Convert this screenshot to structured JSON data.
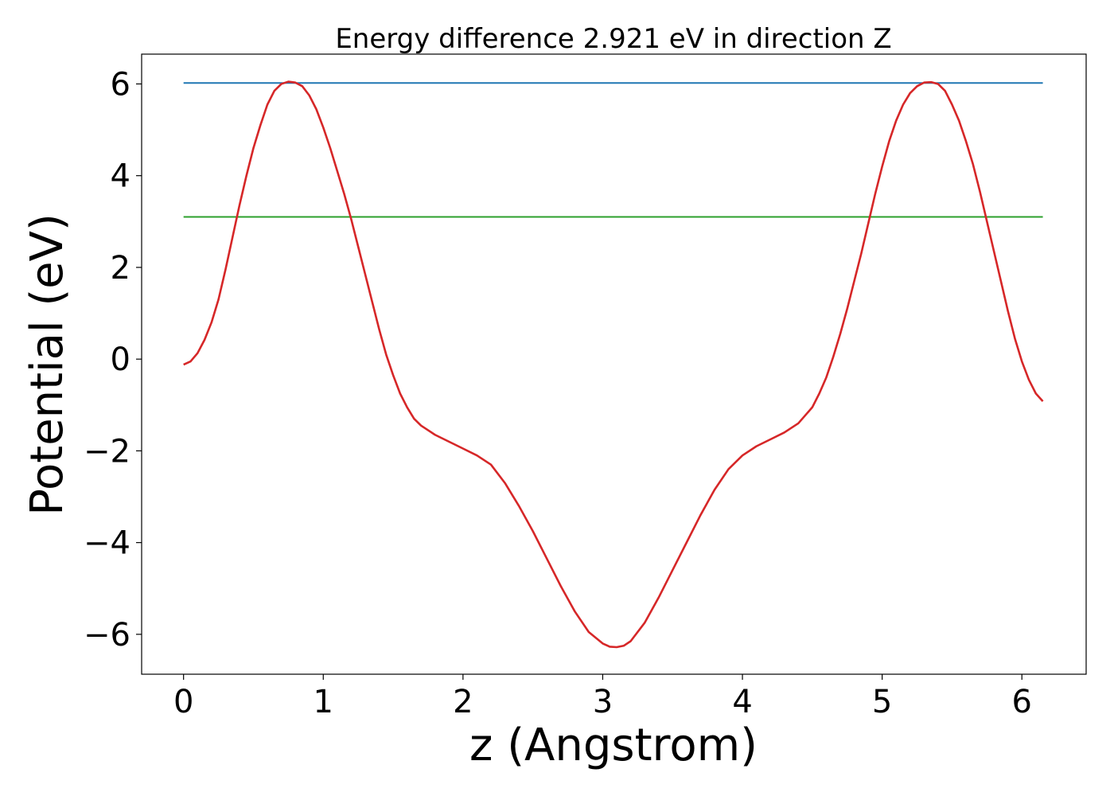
{
  "chart_data": {
    "type": "line",
    "title": "Energy difference 2.921 eV in direction Z",
    "xlabel": "z (Angstrom)",
    "ylabel": "Potential (eV)",
    "xlim": [
      -0.3,
      6.46
    ],
    "ylim": [
      -6.87,
      6.65
    ],
    "xticks": [
      {
        "value": 0,
        "label": "0"
      },
      {
        "value": 1,
        "label": "1"
      },
      {
        "value": 2,
        "label": "2"
      },
      {
        "value": 3,
        "label": "3"
      },
      {
        "value": 4,
        "label": "4"
      },
      {
        "value": 5,
        "label": "5"
      },
      {
        "value": 6,
        "label": "6"
      }
    ],
    "yticks": [
      {
        "value": -6,
        "label": "−6"
      },
      {
        "value": -4,
        "label": "−4"
      },
      {
        "value": -2,
        "label": "−2"
      },
      {
        "value": 0,
        "label": "0"
      },
      {
        "value": 2,
        "label": "2"
      },
      {
        "value": 4,
        "label": "4"
      },
      {
        "value": 6,
        "label": "6"
      }
    ],
    "grid": false,
    "legend": "none",
    "series": [
      {
        "color": "#1f77b4",
        "x": [
          0,
          6.15
        ],
        "y": [
          6.02,
          6.02
        ]
      },
      {
        "color": "#2ca02c",
        "x": [
          0,
          6.15
        ],
        "y": [
          3.1,
          3.1
        ]
      },
      {
        "color": "#d62728",
        "x": [
          0,
          0.05,
          0.1,
          0.15,
          0.2,
          0.25,
          0.3,
          0.35,
          0.4,
          0.45,
          0.5,
          0.55,
          0.6,
          0.65,
          0.7,
          0.75,
          0.8,
          0.85,
          0.9,
          0.95,
          1.0,
          1.05,
          1.1,
          1.15,
          1.2,
          1.25,
          1.3,
          1.35,
          1.4,
          1.45,
          1.5,
          1.55,
          1.6,
          1.65,
          1.7,
          1.75,
          1.8,
          1.9,
          2.0,
          2.1,
          2.2,
          2.3,
          2.4,
          2.5,
          2.6,
          2.7,
          2.8,
          2.9,
          3.0,
          3.05,
          3.1,
          3.15,
          3.2,
          3.3,
          3.4,
          3.5,
          3.6,
          3.7,
          3.8,
          3.9,
          4.0,
          4.1,
          4.2,
          4.3,
          4.4,
          4.5,
          4.55,
          4.6,
          4.65,
          4.7,
          4.75,
          4.8,
          4.85,
          4.9,
          4.95,
          5.0,
          5.05,
          5.1,
          5.15,
          5.2,
          5.25,
          5.3,
          5.35,
          5.4,
          5.45,
          5.5,
          5.55,
          5.6,
          5.65,
          5.7,
          5.75,
          5.8,
          5.85,
          5.9,
          5.95,
          6.0,
          6.05,
          6.1,
          6.15
        ],
        "y": [
          -0.12,
          -0.05,
          0.13,
          0.42,
          0.8,
          1.3,
          1.95,
          2.65,
          3.35,
          4.0,
          4.6,
          5.1,
          5.55,
          5.85,
          6.0,
          6.05,
          6.03,
          5.95,
          5.75,
          5.45,
          5.05,
          4.6,
          4.1,
          3.6,
          3.05,
          2.45,
          1.85,
          1.25,
          0.65,
          0.1,
          -0.35,
          -0.75,
          -1.05,
          -1.3,
          -1.45,
          -1.55,
          -1.65,
          -1.8,
          -1.95,
          -2.1,
          -2.3,
          -2.7,
          -3.2,
          -3.75,
          -4.35,
          -4.95,
          -5.5,
          -5.95,
          -6.2,
          -6.27,
          -6.28,
          -6.25,
          -6.15,
          -5.75,
          -5.2,
          -4.6,
          -4.0,
          -3.4,
          -2.85,
          -2.4,
          -2.1,
          -1.9,
          -1.75,
          -1.6,
          -1.4,
          -1.05,
          -0.75,
          -0.4,
          0.05,
          0.55,
          1.1,
          1.7,
          2.3,
          2.95,
          3.6,
          4.2,
          4.75,
          5.2,
          5.55,
          5.8,
          5.95,
          6.03,
          6.04,
          6.0,
          5.85,
          5.55,
          5.2,
          4.75,
          4.25,
          3.65,
          3.0,
          2.35,
          1.7,
          1.05,
          0.45,
          -0.05,
          -0.45,
          -0.75,
          -0.92
        ],
        "ignore_y_override": null
      }
    ]
  }
}
